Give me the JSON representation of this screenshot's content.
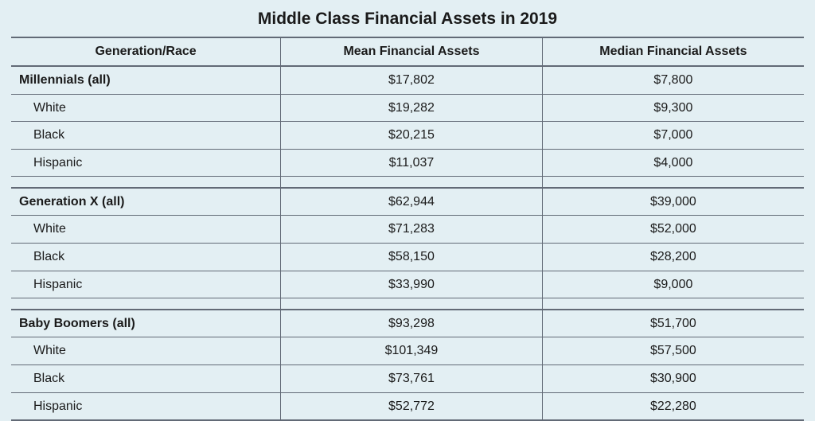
{
  "title": "Middle Class Financial Assets in 2019",
  "columns": {
    "c0": "Generation/Race",
    "c1": "Mean Financial Assets",
    "c2": "Median Financial Assets"
  },
  "colors": {
    "background": "#e3eff3",
    "border": "#626a76",
    "text": "#1a1a1a"
  },
  "groups": [
    {
      "label": "Millennials (all)",
      "mean": "$17,802",
      "median": "$7,800",
      "rows": [
        {
          "label": "White",
          "mean": "$19,282",
          "median": "$9,300"
        },
        {
          "label": "Black",
          "mean": "$20,215",
          "median": "$7,000"
        },
        {
          "label": "Hispanic",
          "mean": "$11,037",
          "median": "$4,000"
        }
      ]
    },
    {
      "label": "Generation X (all)",
      "mean": "$62,944",
      "median": "$39,000",
      "rows": [
        {
          "label": "White",
          "mean": "$71,283",
          "median": "$52,000"
        },
        {
          "label": "Black",
          "mean": "$58,150",
          "median": "$28,200"
        },
        {
          "label": "Hispanic",
          "mean": "$33,990",
          "median": "$9,000"
        }
      ]
    },
    {
      "label": "Baby Boomers (all)",
      "mean": "$93,298",
      "median": "$51,700",
      "rows": [
        {
          "label": "White",
          "mean": "$101,349",
          "median": "$57,500"
        },
        {
          "label": "Black",
          "mean": "$73,761",
          "median": "$30,900"
        },
        {
          "label": "Hispanic",
          "mean": "$52,772",
          "median": "$22,280"
        }
      ]
    }
  ]
}
